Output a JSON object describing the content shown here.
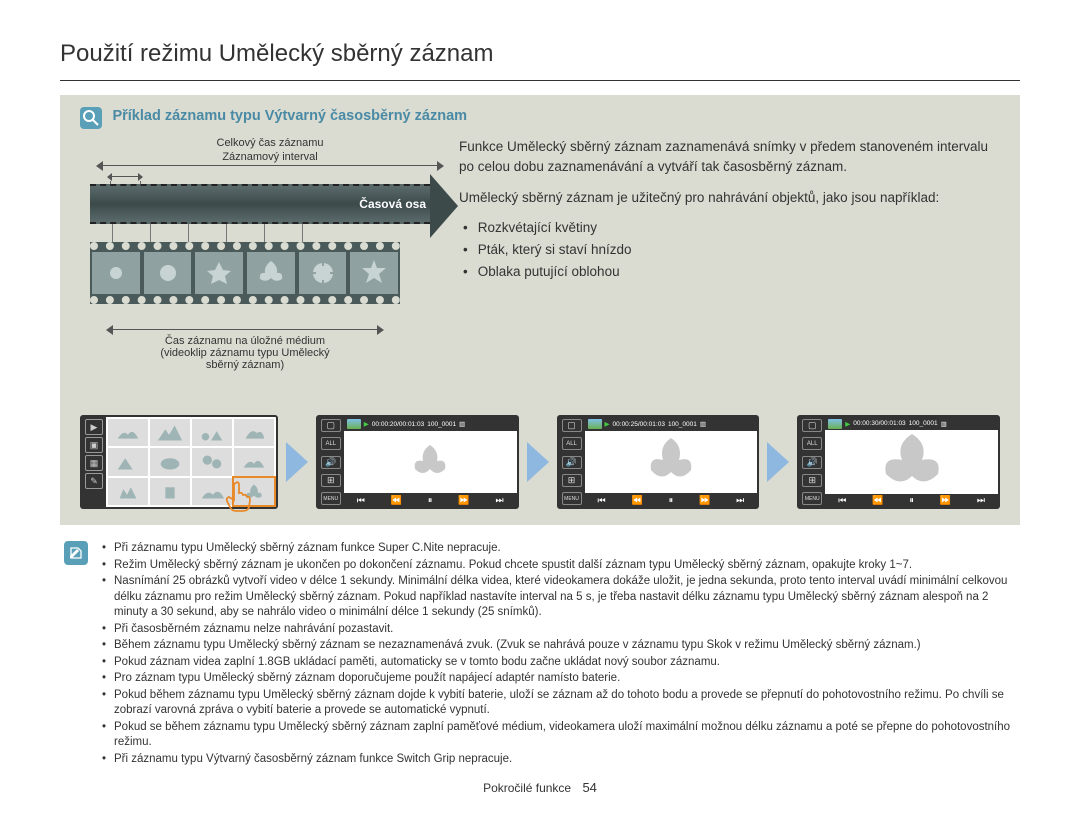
{
  "title": "Použití režimu Umělecký sběrný záznam",
  "subheading": "Příklad záznamu typu Výtvarný časosběrný záznam",
  "diagram": {
    "top_label1": "Celkový čas záznamu",
    "top_label2": "Záznamový interval",
    "timeline_label": "Časová osa",
    "bottom_label1": "Čas záznamu na úložné médium",
    "bottom_label2": "(videoklip záznamu typu Umělecký",
    "bottom_label3": "sběrný záznam)"
  },
  "description": {
    "p1": "Funkce Umělecký sběrný záznam zaznamenává snímky v předem stanoveném intervalu po celou dobu zaznamenávání a vytváří tak časosběrný záznam.",
    "p2": "Umělecký sběrný záznam je užitečný pro nahrávání objektů, jako jsou například:",
    "bullets": [
      "Rozkvétající květiny",
      "Pták, který si staví hnízdo",
      "Oblaka putující oblohou"
    ]
  },
  "players": [
    {
      "time": "00:00:20/00:01:03",
      "file": "100_0001"
    },
    {
      "time": "00:00:25/00:01:03",
      "file": "100_0001"
    },
    {
      "time": "00:00:30/00:01:03",
      "file": "100_0001"
    }
  ],
  "side_icons_left": [
    "▶",
    "▣",
    "▦",
    "✎"
  ],
  "player_side_icons": [
    "▢",
    "ALL",
    "🔊",
    "⊞",
    "MENU"
  ],
  "transport": [
    "⏮",
    "⏪",
    "⏸",
    "⏩",
    "⏭"
  ],
  "notes": [
    "Při záznamu typu Umělecký sběrný záznam funkce Super C.Nite nepracuje.",
    "Režim Umělecký sběrný záznam je ukončen po dokončení záznamu. Pokud chcete spustit další záznam typu Umělecký sběrný záznam, opakujte kroky 1~7.",
    "Nasnímání 25 obrázků vytvoří video v délce 1 sekundy. Minimální délka videa, které videokamera dokáže uložit, je jedna sekunda, proto tento interval uvádí minimální celkovou délku záznamu pro režim Umělecký sběrný záznam. Pokud například nastavíte interval na 5 s, je třeba nastavit délku záznamu typu Umělecký sběrný záznam alespoň na 2 minuty a 30 sekund, aby se nahrálo video o minimální délce 1 sekundy (25 snímků).",
    "Při časosběrném záznamu nelze nahrávání pozastavit.",
    "Během záznamu typu Umělecký sběrný záznam se nezaznamenává zvuk. (Zvuk se nahrává pouze v záznamu typu Skok v režimu Umělecký sběrný záznam.)",
    "Pokud záznam videa zaplní 1.8GB ukládací paměti, automaticky se v tomto bodu začne ukládat nový soubor záznamu.",
    "Pro záznam typu Umělecký sběrný záznam doporučujeme použít napájecí adaptér namísto baterie.",
    "Pokud během záznamu typu Umělecký sběrný záznam dojde k vybití baterie, uloží se záznam až do tohoto bodu a provede se přepnutí do pohotovostního režimu. Po chvíli se zobrazí varovná zpráva o vybití baterie a provede se automatické vypnutí.",
    "Pokud se během záznamu typu Umělecký sběrný záznam zaplní paměťové médium, videokamera uloží maximální možnou délku záznamu a poté se přepne do pohotovostního režimu.",
    "Při záznamu typu Výtvarný časosběrný záznam funkce Switch Grip nepracuje."
  ],
  "footer": {
    "section": "Pokročilé funkce",
    "page": "54"
  },
  "colors": {
    "accent": "#4a8aa5",
    "box_bg": "#dadcd2",
    "film_bg": "#4a5a5a",
    "arrow_blue": "#8fb8e0"
  }
}
